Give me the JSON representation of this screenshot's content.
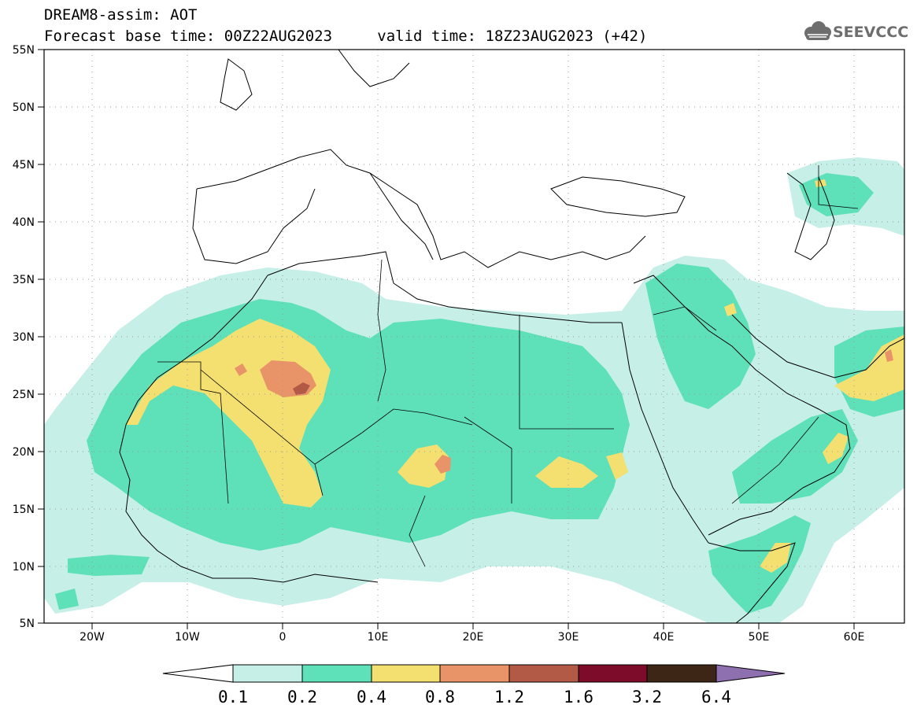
{
  "header": {
    "title": "DREAM8-assim: AOT",
    "base_time": "Forecast base time: 00Z22AUG2023",
    "valid_time": "valid time: 18Z23AUG2023 (+42)"
  },
  "logo": {
    "text": "SEEVCCC",
    "icon": "cloud-icon"
  },
  "map": {
    "lon_range": [
      -25,
      65
    ],
    "lat_range": [
      5,
      55
    ],
    "lat_labels": [
      "55N",
      "50N",
      "45N",
      "40N",
      "35N",
      "30N",
      "25N",
      "20N",
      "15N",
      "10N",
      "5N"
    ],
    "lon_labels": [
      "20W",
      "10W",
      "0",
      "10E",
      "20E",
      "30E",
      "40E",
      "50E",
      "60E"
    ],
    "gridlines": "dotted"
  },
  "colorbar": {
    "labels": [
      "0.1",
      "0.2",
      "0.4",
      "0.8",
      "1.2",
      "1.6",
      "3.2",
      "6.4"
    ],
    "colors": {
      "below": "#ffffff",
      "c1": "#c6efe8",
      "c2": "#5ee0b8",
      "c3": "#f3e070",
      "c4": "#e89468",
      "c5": "#b25a46",
      "c6": "#7d0c2a",
      "c7": "#3d2616",
      "above": "#8e6fb0"
    }
  }
}
